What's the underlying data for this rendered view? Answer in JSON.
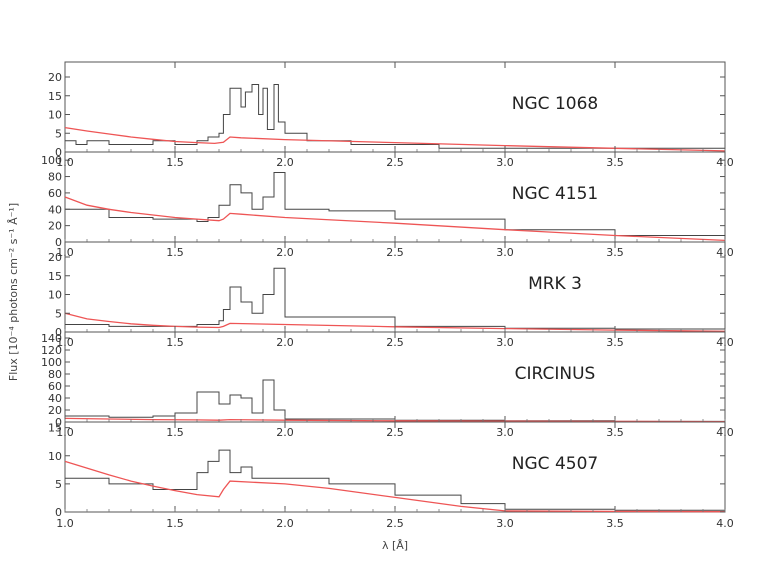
{
  "chart_data": {
    "type": "line",
    "xlabel": "λ [Å]",
    "ylabel": "Flux [10⁻⁴ photons cm⁻² s⁻¹ Å⁻¹]",
    "xlim": [
      1.0,
      4.0
    ],
    "xticks": [
      "1.0",
      "1.5",
      "2.0",
      "2.5",
      "3.0",
      "3.5",
      "4.0"
    ],
    "colors": {
      "data": "#444444",
      "model": "#ee5555"
    },
    "panels": [
      {
        "name": "NGC 1068",
        "ylim": [
          0,
          24
        ],
        "yticks": [
          "0",
          "5",
          "10",
          "15",
          "20"
        ],
        "series": [
          {
            "name": "data",
            "x": [
              1.0,
              1.05,
              1.1,
              1.2,
              1.3,
              1.4,
              1.5,
              1.6,
              1.65,
              1.7,
              1.72,
              1.75,
              1.8,
              1.82,
              1.85,
              1.88,
              1.9,
              1.92,
              1.95,
              1.97,
              2.0,
              2.1,
              2.2,
              2.3,
              2.5,
              2.7,
              3.0,
              3.5,
              4.0
            ],
            "y": [
              3,
              2,
              3,
              2,
              2,
              3,
              2,
              3,
              4,
              5,
              10,
              17,
              12,
              16,
              18,
              10,
              17,
              6,
              18,
              8,
              5,
              3,
              3,
              2,
              2,
              1,
              1,
              1,
              0.5
            ]
          },
          {
            "name": "model",
            "x": [
              1.0,
              1.1,
              1.2,
              1.3,
              1.4,
              1.5,
              1.6,
              1.68,
              1.72,
              1.75,
              1.8,
              2.0,
              2.5,
              3.0,
              3.5,
              4.0
            ],
            "y": [
              6.5,
              5.6,
              4.8,
              4.0,
              3.4,
              2.8,
              2.5,
              2.3,
              2.6,
              4.0,
              3.8,
              3.3,
              2.5,
              1.7,
              1.0,
              0.3
            ]
          }
        ]
      },
      {
        "name": "NGC 4151",
        "ylim": [
          0,
          110
        ],
        "yticks": [
          "0",
          "20",
          "40",
          "60",
          "80",
          "100"
        ],
        "series": [
          {
            "name": "data",
            "x": [
              1.0,
              1.2,
              1.4,
              1.6,
              1.65,
              1.7,
              1.75,
              1.8,
              1.85,
              1.9,
              1.95,
              2.0,
              2.2,
              2.5,
              3.0,
              3.5,
              4.0
            ],
            "y": [
              40,
              30,
              28,
              25,
              30,
              45,
              70,
              60,
              40,
              55,
              85,
              40,
              38,
              28,
              15,
              8,
              4
            ]
          },
          {
            "name": "model",
            "x": [
              1.0,
              1.1,
              1.2,
              1.3,
              1.4,
              1.5,
              1.6,
              1.7,
              1.72,
              1.75,
              1.8,
              2.0,
              2.5,
              3.0,
              3.5,
              4.0
            ],
            "y": [
              55,
              45,
              40,
              36,
              33,
              30,
              28,
              26,
              28,
              35,
              34,
              30,
              23,
              15,
              8,
              2
            ]
          }
        ]
      },
      {
        "name": "MRK 3",
        "ylim": [
          0,
          24
        ],
        "yticks": [
          "0",
          "5",
          "10",
          "15",
          "20"
        ],
        "series": [
          {
            "name": "data",
            "x": [
              1.0,
              1.2,
              1.4,
              1.6,
              1.7,
              1.72,
              1.75,
              1.8,
              1.85,
              1.9,
              1.95,
              2.0,
              2.5,
              3.0,
              3.5,
              4.0
            ],
            "y": [
              2,
              1.5,
              1.5,
              2,
              3,
              6,
              12,
              8,
              5,
              10,
              17,
              4,
              1.5,
              1,
              0.8,
              0.5
            ]
          },
          {
            "name": "model",
            "x": [
              1.0,
              1.1,
              1.2,
              1.3,
              1.4,
              1.5,
              1.6,
              1.7,
              1.72,
              1.75,
              2.0,
              2.5,
              3.0,
              3.5,
              4.0
            ],
            "y": [
              5,
              3.5,
              2.8,
              2.2,
              1.8,
              1.5,
              1.3,
              1.2,
              1.5,
              2.3,
              2.0,
              1.4,
              0.9,
              0.5,
              0.2
            ]
          }
        ]
      },
      {
        "name": "CIRCINUS",
        "ylim": [
          0,
          150
        ],
        "yticks": [
          "0",
          "20",
          "40",
          "60",
          "80",
          "100",
          "120",
          "140"
        ],
        "series": [
          {
            "name": "data",
            "x": [
              1.0,
              1.2,
              1.4,
              1.5,
              1.6,
              1.7,
              1.75,
              1.8,
              1.85,
              1.9,
              1.95,
              2.0,
              2.5,
              3.0,
              3.5,
              4.0
            ],
            "y": [
              10,
              8,
              10,
              15,
              50,
              30,
              45,
              40,
              15,
              70,
              20,
              5,
              3,
              2,
              1,
              1
            ]
          },
          {
            "name": "model",
            "x": [
              1.0,
              1.2,
              1.4,
              1.6,
              1.7,
              1.75,
              2.0,
              2.5,
              3.0,
              3.5,
              4.0
            ],
            "y": [
              6,
              5,
              4,
              3.5,
              3,
              4,
              3,
              2,
              1.5,
              1,
              0.5
            ]
          }
        ]
      },
      {
        "name": "NGC 4507",
        "ylim": [
          0,
          16
        ],
        "yticks": [
          "0",
          "5",
          "10",
          "15"
        ],
        "series": [
          {
            "name": "data",
            "x": [
              1.0,
              1.2,
              1.4,
              1.6,
              1.65,
              1.7,
              1.75,
              1.8,
              1.85,
              1.9,
              2.0,
              2.2,
              2.5,
              2.8,
              3.0,
              3.5,
              4.0
            ],
            "y": [
              6,
              5,
              4,
              7,
              9,
              11,
              7,
              8,
              6,
              6,
              6,
              5,
              3,
              1.5,
              0.5,
              0.3,
              0.1
            ]
          },
          {
            "name": "model",
            "x": [
              1.0,
              1.1,
              1.2,
              1.3,
              1.4,
              1.5,
              1.6,
              1.7,
              1.72,
              1.75,
              2.0,
              2.2,
              2.5,
              2.8,
              3.0,
              3.5,
              4.0
            ],
            "y": [
              9,
              7.8,
              6.6,
              5.5,
              4.6,
              3.8,
              3.1,
              2.7,
              4.0,
              5.5,
              5.0,
              4.2,
              2.6,
              1.0,
              0.2,
              0.1,
              0.05
            ]
          }
        ]
      }
    ]
  }
}
